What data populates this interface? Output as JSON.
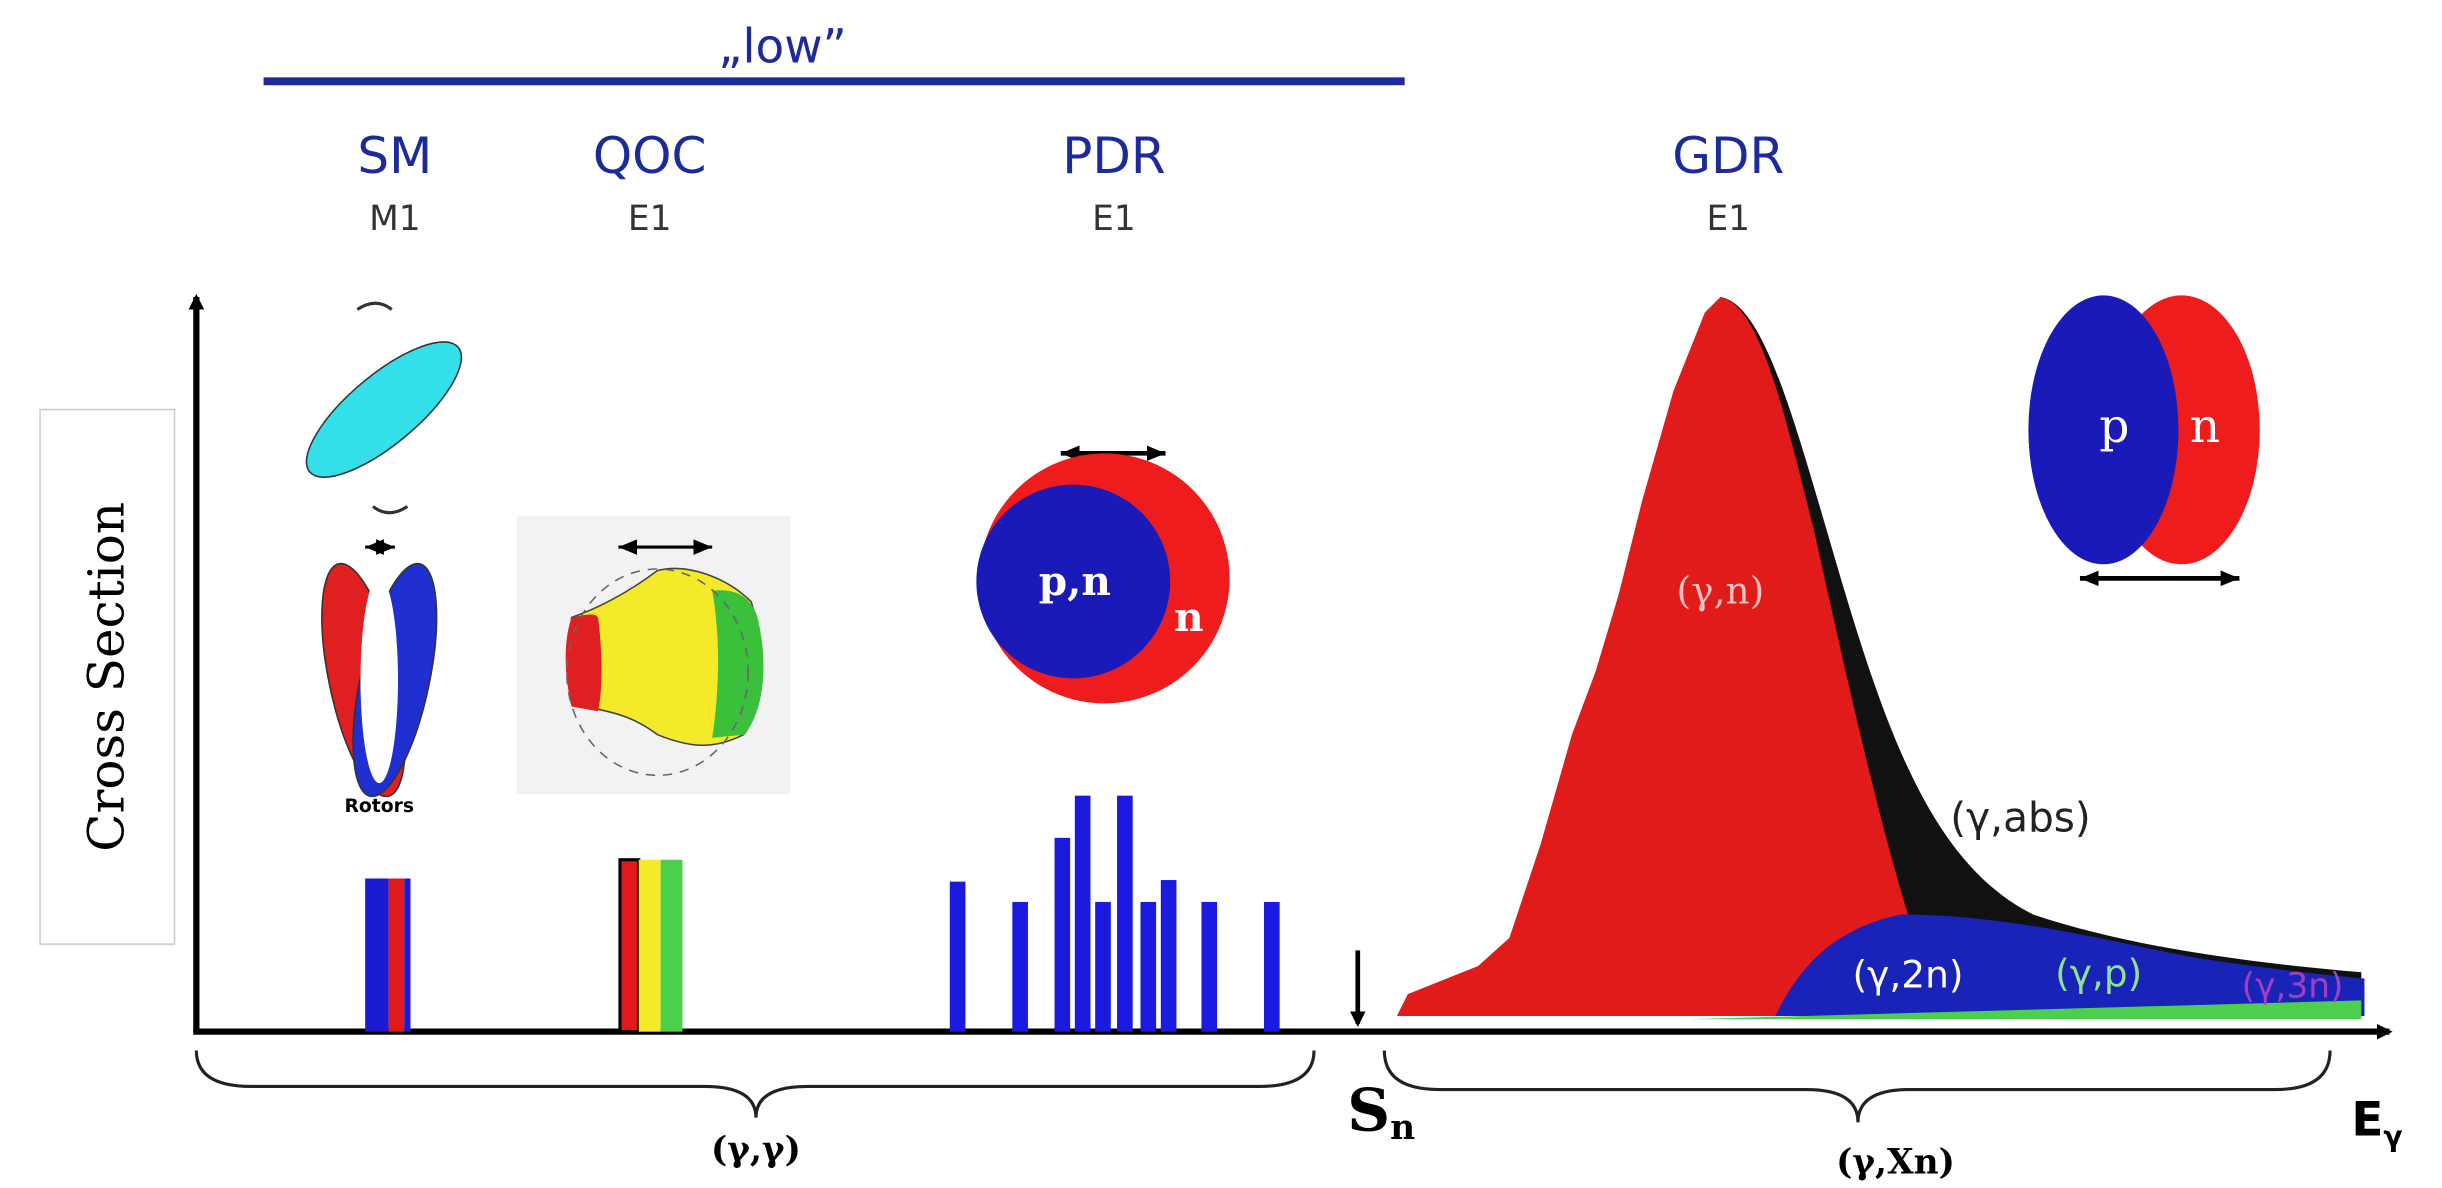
{
  "header": {
    "title": "„low”"
  },
  "modes": [
    {
      "name": "SM",
      "multipolarity": "M1"
    },
    {
      "name": "QOC",
      "multipolarity": "E1"
    },
    {
      "name": "PDR",
      "multipolarity": "E1"
    },
    {
      "name": "GDR",
      "multipolarity": "E1"
    }
  ],
  "axis": {
    "y_label": "Cross Section",
    "x_label": {
      "base": "E",
      "sub": "γ"
    }
  },
  "threshold": {
    "base": "S",
    "sub": "n"
  },
  "pictograms": {
    "rotors": "Rotors",
    "pdr_core": "p,n",
    "pdr_skin": "n",
    "gdr_p": "p",
    "gdr_n": "n"
  },
  "channels": {
    "gn": "(γ,n)",
    "gabs": "(γ,abs)",
    "g2n": "(γ,2n)",
    "gp": "(γ,p)",
    "g3n": "(γ,3n)"
  },
  "ranges": {
    "low": "(γ,γ)",
    "high": "(γ,Xn)"
  }
}
